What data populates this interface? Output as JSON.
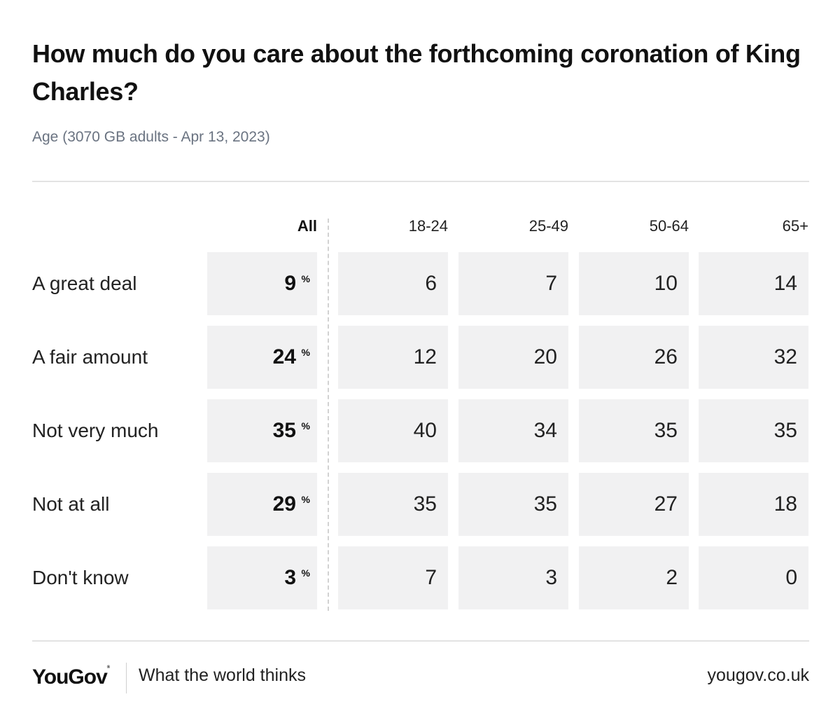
{
  "title": "How much do you care about the forthcoming coronation of King Charles?",
  "subtitle": "Age (3070 GB adults - Apr 13, 2023)",
  "chart_data": {
    "type": "table",
    "title": "How much do you care about the forthcoming coronation of King Charles?",
    "subtitle": "Age (3070 GB adults - Apr 13, 2023)",
    "unit": "%",
    "columns": [
      "All",
      "18-24",
      "25-49",
      "50-64",
      "65+"
    ],
    "rows": [
      {
        "label": "A great deal",
        "values": [
          9,
          6,
          7,
          10,
          14
        ]
      },
      {
        "label": "A fair amount",
        "values": [
          24,
          12,
          20,
          26,
          32
        ]
      },
      {
        "label": "Not very much",
        "values": [
          35,
          40,
          34,
          35,
          35
        ]
      },
      {
        "label": "Not at all",
        "values": [
          29,
          35,
          35,
          27,
          18
        ]
      },
      {
        "label": "Don't know",
        "values": [
          3,
          7,
          3,
          2,
          0
        ]
      }
    ]
  },
  "footer": {
    "logo": "YouGov",
    "trademark": "®",
    "tagline": "What the world thinks",
    "site": "yougov.co.uk"
  }
}
